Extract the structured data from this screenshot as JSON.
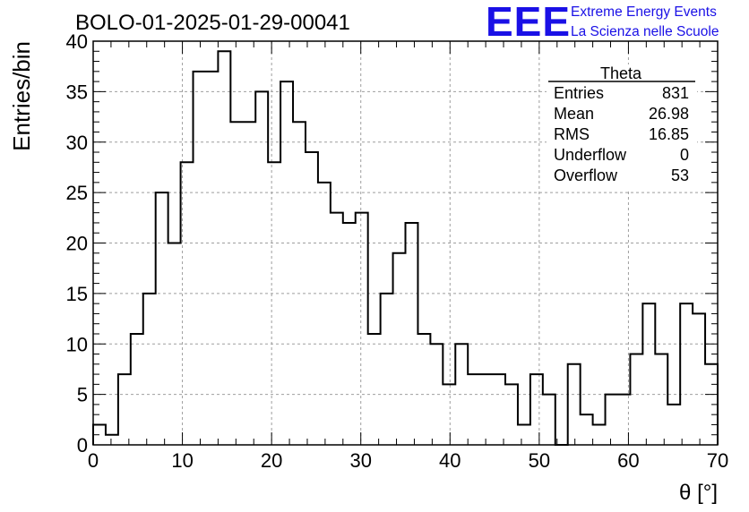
{
  "title": "BOLO-01-2025-01-29-00041",
  "logo": {
    "mark": "EEE",
    "line1": "Extreme Energy Events",
    "line2": "La Scienza nelle Scuole",
    "color": "#1a10e6"
  },
  "stats": {
    "name": "Theta",
    "rows": [
      {
        "label": "Entries",
        "value": "831"
      },
      {
        "label": "Mean",
        "value": "26.98"
      },
      {
        "label": "RMS",
        "value": "16.85"
      },
      {
        "label": "Underflow",
        "value": "0"
      },
      {
        "label": "Overflow",
        "value": "53"
      }
    ]
  },
  "chart_data": {
    "type": "bar",
    "histogram_style": "step",
    "title": "BOLO-01-2025-01-29-00041",
    "xlabel": "θ [°]",
    "ylabel": "Entries/bin",
    "xlim": [
      0,
      70
    ],
    "ylim": [
      0,
      40
    ],
    "bin_width": 1.4,
    "x_ticks": [
      0,
      10,
      20,
      30,
      40,
      50,
      60,
      70
    ],
    "y_ticks": [
      0,
      5,
      10,
      15,
      20,
      25,
      30,
      35,
      40
    ],
    "grid": true,
    "legend_placement": "top-right",
    "values": [
      2,
      1,
      7,
      11,
      15,
      25,
      20,
      28,
      37,
      37,
      39,
      32,
      32,
      35,
      28,
      36,
      32,
      29,
      26,
      23,
      22,
      23,
      11,
      15,
      19,
      22,
      11,
      10,
      6,
      10,
      7,
      7,
      7,
      6,
      2,
      7,
      5,
      0,
      8,
      3,
      2,
      5,
      5,
      9,
      14,
      9,
      4,
      14,
      13,
      8
    ]
  }
}
